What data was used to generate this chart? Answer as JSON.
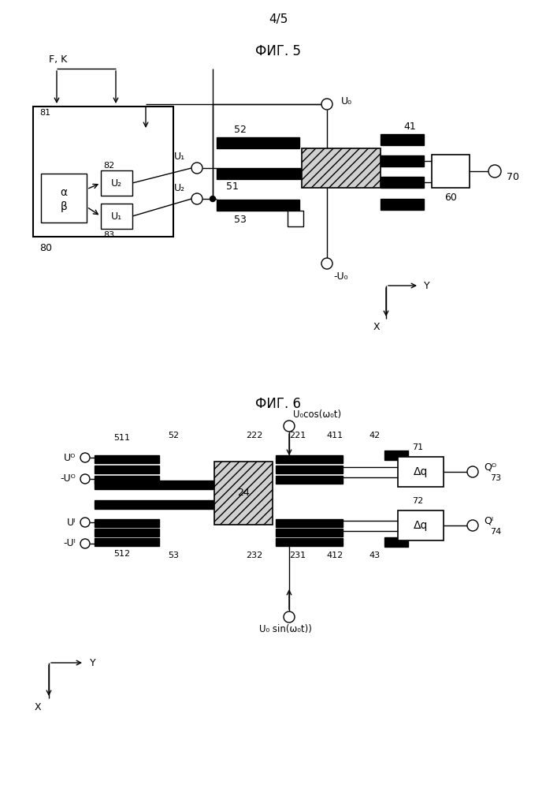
{
  "page_label": "4/5",
  "fig5_label": "ФИГ. 5",
  "fig6_label": "ФИГ. 6",
  "background": "#ffffff",
  "fig5": {
    "FK": "F, K",
    "U0_top": "U₀",
    "U0_bot": "-U₀",
    "U1_lbl": "U₁",
    "U2_lbl": "U₂",
    "n52": "52",
    "n51": "51",
    "n53": "53",
    "n41": "41",
    "n60": "60",
    "n70": "70",
    "n80": "80",
    "n81": "81",
    "n82": "82",
    "n83": "83",
    "alpha": "α",
    "beta": "β",
    "U2_box": "U₂",
    "U1_box": "U₁",
    "Y": "Y",
    "X": "X"
  },
  "fig6": {
    "U0cos": "U₀cos(ω₀t)",
    "U0sin": "U₀ sin(ω₀t))",
    "n511": "511",
    "n512": "512",
    "n52": "52",
    "n53": "53",
    "n222": "222",
    "n221": "221",
    "n232": "232",
    "n231": "231",
    "n42": "42",
    "n411": "411",
    "n412": "412",
    "n43": "43",
    "n24": "24",
    "n71": "71",
    "n72": "72",
    "n73": "73",
    "n74": "74",
    "QR": "Qᴼ",
    "QI": "Qᴵ",
    "UR": "Uᴼ",
    "mUR": "-Uᴼ",
    "UI": "Uᴵ",
    "mUI": "-Uᴵ",
    "dq": "Δq",
    "Y": "Y",
    "X": "X"
  }
}
